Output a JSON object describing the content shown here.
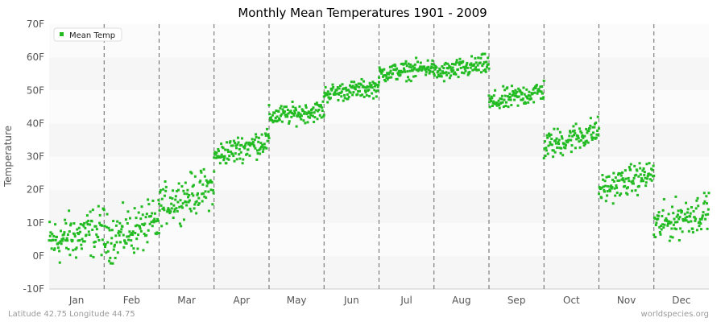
{
  "chart_data": {
    "type": "scatter",
    "title": "Monthly Mean Temperatures 1901 - 2009",
    "ylabel": "Temperature",
    "xlabel": "",
    "ylim": [
      -10,
      70
    ],
    "y_ticks": [
      "-10F",
      "0F",
      "10F",
      "20F",
      "30F",
      "40F",
      "50F",
      "60F",
      "70F"
    ],
    "categories": [
      "Jan",
      "Feb",
      "Mar",
      "Apr",
      "May",
      "Jun",
      "Jul",
      "Aug",
      "Sep",
      "Oct",
      "Nov",
      "Dec"
    ],
    "grid": "alternating horizontal bands, dashed vertical month separators",
    "legend_position": "top-left",
    "series": [
      {
        "name": "Mean Temp",
        "color": "#22bb22",
        "years": 109,
        "monthly_ranges": [
          {
            "month": "Jan",
            "min": -7,
            "max": 15,
            "mean_start": 4,
            "mean_end": 8
          },
          {
            "month": "Feb",
            "min": -4,
            "max": 17,
            "mean_start": 5,
            "mean_end": 10
          },
          {
            "month": "Mar",
            "min": 9,
            "max": 27,
            "mean_start": 15,
            "mean_end": 21
          },
          {
            "month": "Apr",
            "min": 28,
            "max": 40,
            "mean_start": 30,
            "mean_end": 35
          },
          {
            "month": "May",
            "min": 39,
            "max": 48,
            "mean_start": 42,
            "mean_end": 44
          },
          {
            "month": "Jun",
            "min": 46,
            "max": 54,
            "mean_start": 49,
            "mean_end": 51
          },
          {
            "month": "Jul",
            "min": 52,
            "max": 60,
            "mean_start": 55,
            "mean_end": 57
          },
          {
            "month": "Aug",
            "min": 52,
            "max": 61,
            "mean_start": 55,
            "mean_end": 58
          },
          {
            "month": "Sep",
            "min": 43,
            "max": 53,
            "mean_start": 46,
            "mean_end": 50
          },
          {
            "month": "Oct",
            "min": 29,
            "max": 42,
            "mean_start": 33,
            "mean_end": 38
          },
          {
            "month": "Nov",
            "min": 15,
            "max": 28,
            "mean_start": 20,
            "mean_end": 25
          },
          {
            "month": "Dec",
            "min": 2,
            "max": 19,
            "mean_start": 9,
            "mean_end": 14
          }
        ]
      }
    ]
  },
  "footer": {
    "location": "Latitude 42.75 Longitude 44.75",
    "source": "worldspecies.org"
  }
}
